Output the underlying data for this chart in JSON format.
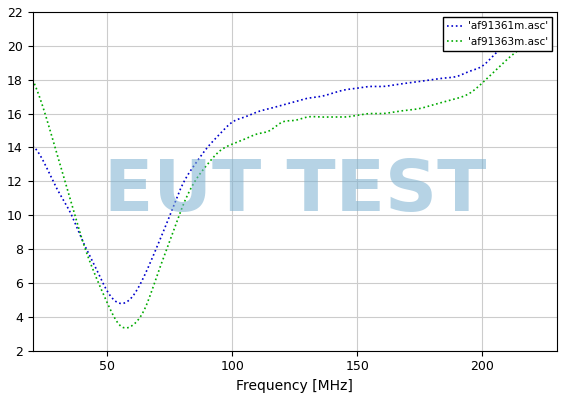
{
  "title": "",
  "xlabel": "Frequency [MHz]",
  "ylabel": "",
  "xlim": [
    20,
    230
  ],
  "ylim": [
    2,
    22
  ],
  "yticks": [
    2,
    4,
    6,
    8,
    10,
    12,
    14,
    16,
    18,
    20,
    22
  ],
  "xticks": [
    50,
    100,
    150,
    200
  ],
  "legend": [
    "'af91361m.asc'",
    "'af91363m.asc'"
  ],
  "legend_colors": [
    "#0000cc",
    "#00aa00"
  ],
  "bg_color": "#ffffff",
  "grid_color": "#cccccc",
  "watermark_text": "EUT TEST",
  "watermark_color": "#7ab0d0",
  "watermark_alpha": 0.55,
  "blue_line": {
    "x": [
      20,
      25,
      30,
      35,
      40,
      45,
      50,
      55,
      60,
      65,
      70,
      75,
      80,
      85,
      90,
      95,
      100,
      105,
      110,
      115,
      120,
      125,
      130,
      135,
      140,
      145,
      150,
      155,
      160,
      165,
      170,
      175,
      180,
      185,
      190,
      195,
      200,
      205,
      210,
      215,
      220,
      225
    ],
    "y": [
      14.1,
      13.0,
      11.5,
      10.2,
      8.5,
      7.0,
      5.5,
      4.8,
      5.2,
      6.5,
      8.2,
      10.0,
      11.8,
      13.0,
      14.0,
      14.8,
      15.5,
      15.8,
      16.1,
      16.3,
      16.5,
      16.7,
      16.9,
      17.0,
      17.2,
      17.4,
      17.5,
      17.6,
      17.6,
      17.7,
      17.8,
      17.9,
      18.0,
      18.1,
      18.2,
      18.5,
      18.8,
      19.5,
      20.2,
      20.8,
      21.2,
      21.5
    ]
  },
  "green_line": {
    "x": [
      20,
      25,
      30,
      35,
      40,
      45,
      50,
      55,
      60,
      65,
      70,
      75,
      80,
      85,
      90,
      95,
      100,
      105,
      110,
      115,
      120,
      125,
      130,
      135,
      140,
      145,
      150,
      155,
      160,
      165,
      170,
      175,
      180,
      185,
      190,
      195,
      200,
      205,
      210,
      215,
      220,
      225
    ],
    "y": [
      18.0,
      16.0,
      13.5,
      11.0,
      8.5,
      6.5,
      4.8,
      3.5,
      3.5,
      4.5,
      6.5,
      8.5,
      10.5,
      12.0,
      13.0,
      13.8,
      14.2,
      14.5,
      14.8,
      15.0,
      15.5,
      15.6,
      15.8,
      15.8,
      15.8,
      15.8,
      15.9,
      16.0,
      16.0,
      16.1,
      16.2,
      16.3,
      16.5,
      16.7,
      16.9,
      17.2,
      17.8,
      18.5,
      19.2,
      19.8,
      20.3,
      20.5
    ]
  }
}
